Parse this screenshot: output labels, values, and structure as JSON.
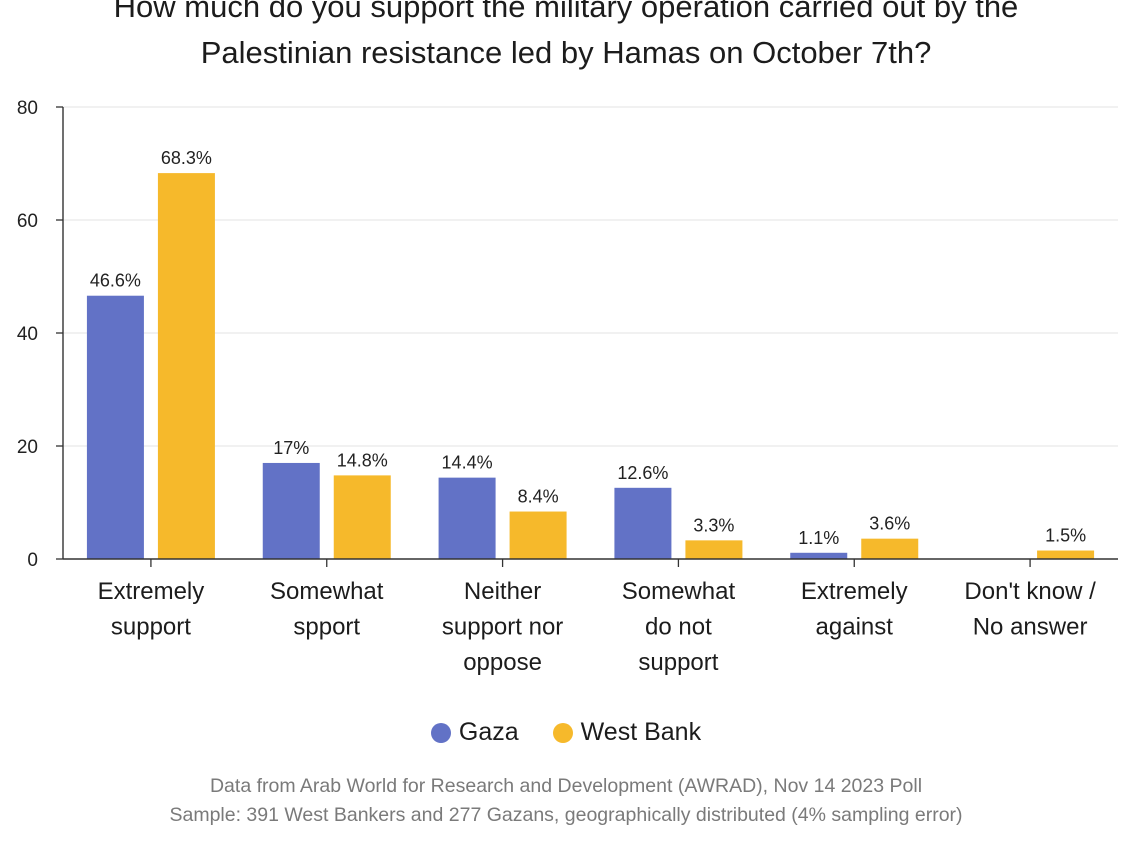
{
  "chart_data": {
    "type": "bar",
    "title_lines": [
      "How much do you support the military operation carried out by the",
      "Palestinian resistance led by Hamas on October 7th?"
    ],
    "categories": [
      [
        "Extremely",
        "support"
      ],
      [
        "Somewhat",
        "spport"
      ],
      [
        "Neither",
        "support nor",
        "oppose"
      ],
      [
        "Somewhat",
        "do not",
        "support"
      ],
      [
        "Extremely",
        "against"
      ],
      [
        "Don't know /",
        "No answer"
      ]
    ],
    "series": [
      {
        "name": "Gaza",
        "color": "#6272c6",
        "values": [
          46.6,
          17,
          14.4,
          12.6,
          1.1,
          null
        ],
        "labels": [
          "46.6%",
          "17%",
          "14.4%",
          "12.6%",
          "1.1%",
          ""
        ]
      },
      {
        "name": "West Bank",
        "color": "#f6b92b",
        "values": [
          68.3,
          14.8,
          8.4,
          3.3,
          3.6,
          1.5
        ],
        "labels": [
          "68.3%",
          "14.8%",
          "8.4%",
          "3.3%",
          "3.6%",
          "1.5%"
        ]
      }
    ],
    "ylim": [
      0,
      80
    ],
    "yticks": [
      "0",
      "20",
      "40",
      "60",
      "80"
    ],
    "grid": true,
    "legend_position": "bottom"
  },
  "source_lines": [
    "Data from Arab World for Research and Development (AWRAD), Nov 14 2023 Poll",
    "Sample: 391 West Bankers and 277 Gazans, geographically distributed (4% sampling error)"
  ]
}
